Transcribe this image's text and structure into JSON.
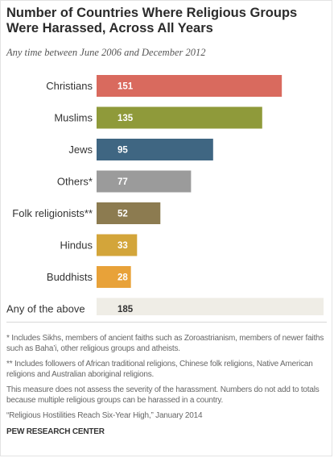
{
  "header": {
    "title": "Number of Countries Where Religious Groups Were Harassed, Across All Years",
    "subtitle": "Any time between June 2006 and December 2012"
  },
  "chart_data": {
    "type": "bar",
    "orientation": "horizontal",
    "title": "Number of Countries Where Religious Groups Were Harassed, Across All Years",
    "subtitle": "Any time between June 2006 and December 2012",
    "categories": [
      "Christians",
      "Muslims",
      "Jews",
      "Others*",
      "Folk religionists**",
      "Hindus",
      "Buddhists",
      "Any of the above"
    ],
    "values": [
      151,
      135,
      95,
      77,
      52,
      33,
      28,
      185
    ],
    "value_labels": [
      "151",
      "135",
      "95",
      "77",
      "52",
      "33",
      "28",
      "185"
    ],
    "colors": [
      "#d96a5e",
      "#8f9a3a",
      "#3f6682",
      "#9b9b9b",
      "#8c7b50",
      "#d3a53a",
      "#e8a239",
      "#efede6"
    ],
    "xlim": [
      0,
      185
    ],
    "grid": false,
    "legend": "none"
  },
  "notes": {
    "note1": "* Includes Sikhs, members of ancient faiths such as Zoroastrianism, members of newer faiths such as Baha’i, other religious groups and atheists.",
    "note2": "** Includes followers of African traditional religions, Chinese folk religions, Native American religions and Australian aboriginal religions.",
    "note3": "This measure does not assess the severity of the harassment. Numbers do not add to totals because multiple religious groups can be harassed in a country.",
    "source": "“Religious Hostilities Reach Six-Year High,” January 2014",
    "org": "PEW RESEARCH CENTER"
  }
}
